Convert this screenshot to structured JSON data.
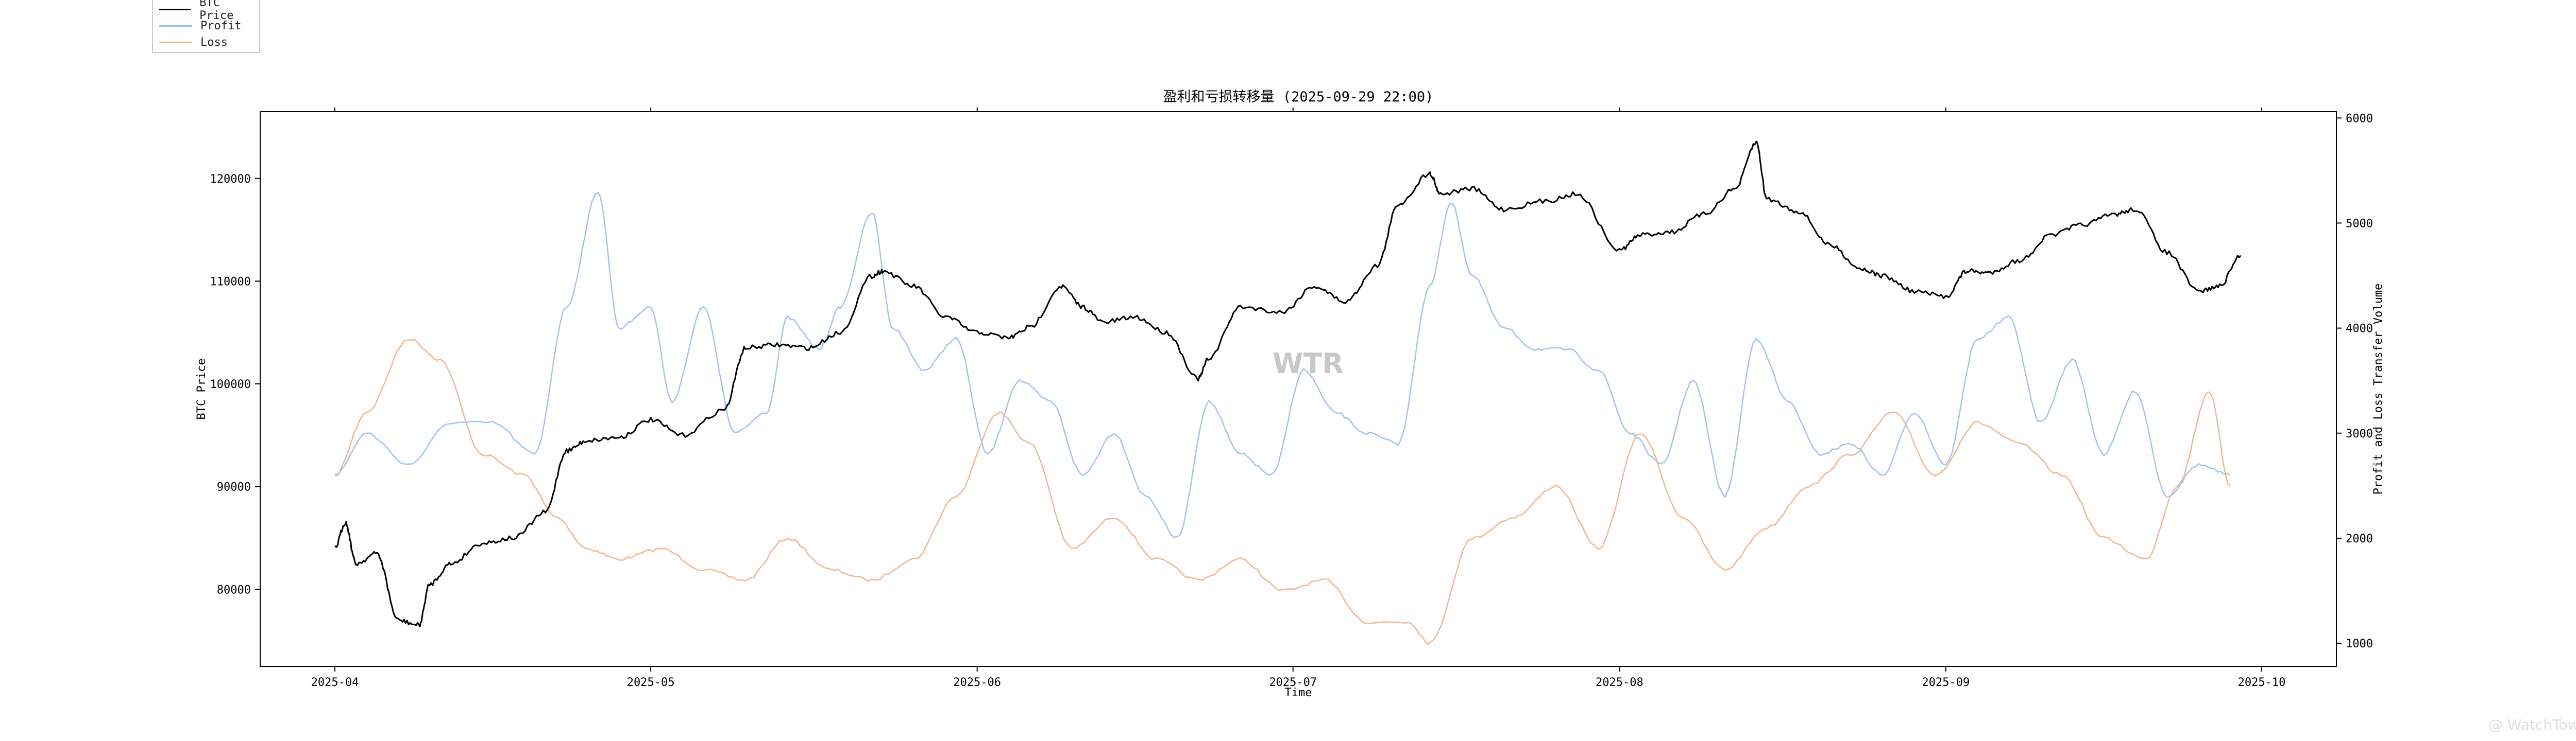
{
  "chart_data": {
    "type": "line",
    "title": "盈利和亏损转移量 (2025-09-29 22:00)",
    "xlabel": "Time",
    "ylabel_left": "BTC Price",
    "ylabel_right": "Profit and Loss Transfer Volume",
    "x_range": [
      "2025-04-01",
      "2025-10-01"
    ],
    "x_ticks": [
      "2025-04",
      "2025-05",
      "2025-06",
      "2025-07",
      "2025-08",
      "2025-09",
      "2025-10"
    ],
    "y_left_range": [
      72500,
      126500
    ],
    "y_left_ticks": [
      80000,
      90000,
      100000,
      110000,
      120000
    ],
    "y_right_range": [
      780,
      6060
    ],
    "y_right_ticks": [
      1000,
      2000,
      3000,
      4000,
      5000,
      6000
    ],
    "grid": false,
    "legend_position": "top-left",
    "series": [
      {
        "name": "BTC Price",
        "axis": "left",
        "color": "#000000",
        "highlight_color": "#1a1a8c",
        "x": [
          "2025-04-01",
          "2025-04-02",
          "2025-04-03",
          "2025-04-05",
          "2025-04-07",
          "2025-04-09",
          "2025-04-10",
          "2025-04-12",
          "2025-04-15",
          "2025-04-18",
          "2025-04-21",
          "2025-04-23",
          "2025-04-25",
          "2025-04-28",
          "2025-05-01",
          "2025-05-04",
          "2025-05-08",
          "2025-05-10",
          "2025-05-13",
          "2025-05-16",
          "2025-05-19",
          "2025-05-22",
          "2025-05-23",
          "2025-05-26",
          "2025-05-29",
          "2025-06-01",
          "2025-06-04",
          "2025-06-06",
          "2025-06-09",
          "2025-06-11",
          "2025-06-13",
          "2025-06-16",
          "2025-06-19",
          "2025-06-22",
          "2025-06-23",
          "2025-06-26",
          "2025-06-30",
          "2025-07-03",
          "2025-07-06",
          "2025-07-09",
          "2025-07-11",
          "2025-07-14",
          "2025-07-15",
          "2025-07-18",
          "2025-07-21",
          "2025-07-25",
          "2025-07-28",
          "2025-08-01",
          "2025-08-03",
          "2025-08-06",
          "2025-08-09",
          "2025-08-12",
          "2025-08-14",
          "2025-08-15",
          "2025-08-18",
          "2025-08-21",
          "2025-08-24",
          "2025-08-26",
          "2025-08-29",
          "2025-09-01",
          "2025-09-03",
          "2025-09-05",
          "2025-09-08",
          "2025-09-11",
          "2025-09-14",
          "2025-09-17",
          "2025-09-19",
          "2025-09-22",
          "2025-09-25",
          "2025-09-27",
          "2025-09-29"
        ],
        "values": [
          84000,
          86500,
          82500,
          83500,
          77000,
          76500,
          80500,
          82500,
          84500,
          85000,
          87500,
          93500,
          94500,
          94800,
          96500,
          95000,
          97500,
          103500,
          103800,
          103500,
          105000,
          110500,
          111000,
          109500,
          106500,
          105000,
          104500,
          105500,
          109500,
          107500,
          106000,
          106500,
          105000,
          100500,
          102500,
          107500,
          107000,
          109500,
          108000,
          111500,
          117500,
          120500,
          118500,
          119000,
          117000,
          117800,
          118500,
          113000,
          114500,
          114800,
          116500,
          119000,
          123500,
          118000,
          116800,
          113500,
          111200,
          110500,
          109000,
          108500,
          111000,
          110800,
          112000,
          114500,
          115500,
          116500,
          117000,
          112800,
          109000,
          109500,
          112500
        ]
      },
      {
        "name": "Profit",
        "axis": "right",
        "color": "#a3c2f0",
        "x": [
          "2025-04-01",
          "2025-04-04",
          "2025-04-08",
          "2025-04-12",
          "2025-04-16",
          "2025-04-20",
          "2025-04-23",
          "2025-04-26",
          "2025-04-28",
          "2025-05-01",
          "2025-05-03",
          "2025-05-06",
          "2025-05-09",
          "2025-05-12",
          "2025-05-14",
          "2025-05-17",
          "2025-05-19",
          "2025-05-22",
          "2025-05-24",
          "2025-05-27",
          "2025-05-30",
          "2025-06-02",
          "2025-06-05",
          "2025-06-08",
          "2025-06-11",
          "2025-06-14",
          "2025-06-17",
          "2025-06-20",
          "2025-06-23",
          "2025-06-26",
          "2025-06-29",
          "2025-07-02",
          "2025-07-05",
          "2025-07-08",
          "2025-07-11",
          "2025-07-14",
          "2025-07-16",
          "2025-07-18",
          "2025-07-21",
          "2025-07-24",
          "2025-07-27",
          "2025-07-30",
          "2025-08-02",
          "2025-08-05",
          "2025-08-08",
          "2025-08-11",
          "2025-08-14",
          "2025-08-17",
          "2025-08-20",
          "2025-08-23",
          "2025-08-26",
          "2025-08-29",
          "2025-09-01",
          "2025-09-04",
          "2025-09-07",
          "2025-09-10",
          "2025-09-13",
          "2025-09-16",
          "2025-09-19",
          "2025-09-22",
          "2025-09-25",
          "2025-09-28"
        ],
        "values": [
          2600,
          3000,
          2700,
          3100,
          3100,
          2800,
          4200,
          5300,
          4000,
          4200,
          3300,
          4200,
          3000,
          3200,
          4100,
          3800,
          4200,
          5100,
          4000,
          3600,
          3900,
          2800,
          3500,
          3300,
          2600,
          3000,
          2400,
          2000,
          3300,
          2800,
          2600,
          3600,
          3200,
          3000,
          2900,
          4400,
          5200,
          4500,
          4000,
          3800,
          3800,
          3600,
          3000,
          2700,
          3500,
          2400,
          3900,
          3300,
          2800,
          2900,
          2600,
          3200,
          2700,
          3900,
          4100,
          3100,
          3700,
          2800,
          3400,
          2400,
          2700,
          2600
        ]
      },
      {
        "name": "Loss",
        "axis": "right",
        "color": "#f0b690",
        "x": [
          "2025-04-01",
          "2025-04-04",
          "2025-04-08",
          "2025-04-11",
          "2025-04-15",
          "2025-04-19",
          "2025-04-22",
          "2025-04-25",
          "2025-04-28",
          "2025-05-02",
          "2025-05-06",
          "2025-05-10",
          "2025-05-14",
          "2025-05-18",
          "2025-05-22",
          "2025-05-26",
          "2025-05-30",
          "2025-06-03",
          "2025-06-06",
          "2025-06-10",
          "2025-06-14",
          "2025-06-18",
          "2025-06-22",
          "2025-06-26",
          "2025-06-30",
          "2025-07-04",
          "2025-07-08",
          "2025-07-12",
          "2025-07-14",
          "2025-07-18",
          "2025-07-22",
          "2025-07-26",
          "2025-07-30",
          "2025-08-03",
          "2025-08-07",
          "2025-08-11",
          "2025-08-15",
          "2025-08-19",
          "2025-08-23",
          "2025-08-27",
          "2025-08-31",
          "2025-09-04",
          "2025-09-08",
          "2025-09-12",
          "2025-09-16",
          "2025-09-20",
          "2025-09-23",
          "2025-09-26",
          "2025-09-28"
        ],
        "values": [
          2600,
          3200,
          3900,
          3700,
          2800,
          2600,
          2200,
          1900,
          1800,
          1900,
          1700,
          1600,
          2000,
          1700,
          1600,
          1800,
          2400,
          3200,
          2900,
          1900,
          2200,
          1800,
          1600,
          1800,
          1500,
          1600,
          1200,
          1200,
          1000,
          2000,
          2200,
          2500,
          1900,
          3000,
          2200,
          1700,
          2100,
          2500,
          2800,
          3200,
          2600,
          3100,
          2900,
          2600,
          2000,
          1800,
          2500,
          3400,
          2500
        ]
      }
    ],
    "legend": [
      "BTC Price",
      "Profit",
      "Loss"
    ],
    "watermark_center": "WTR",
    "watermark_corner": "@ WatchTower"
  }
}
